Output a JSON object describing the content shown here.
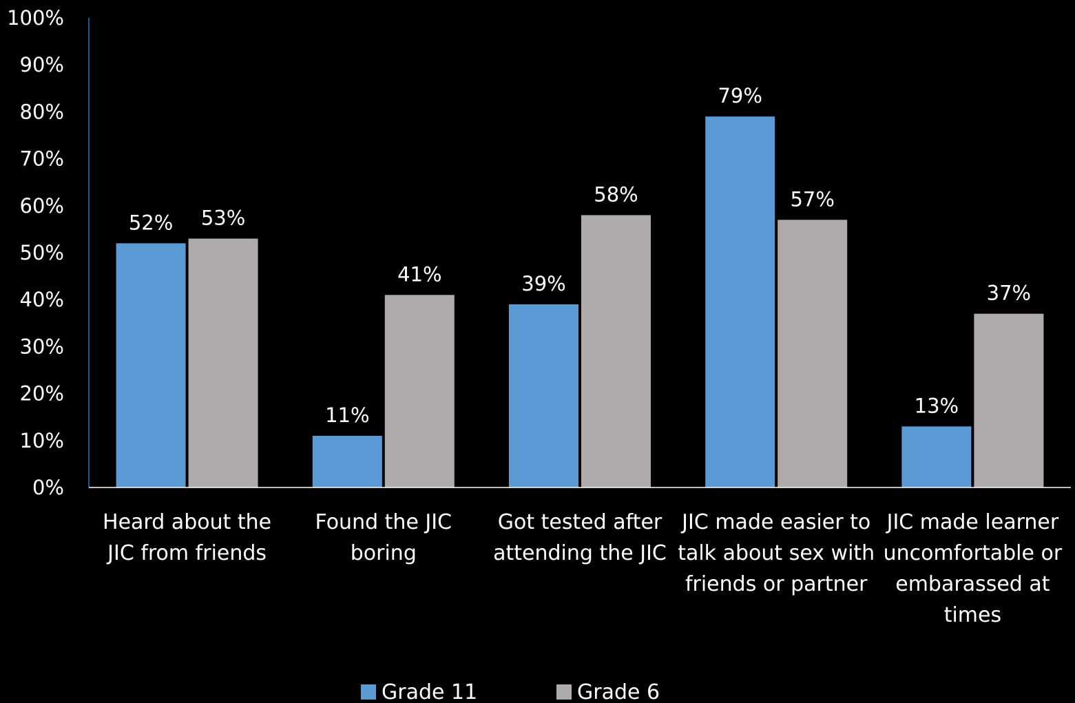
{
  "chart_data": {
    "type": "bar",
    "title": "",
    "xlabel": "",
    "ylabel": "",
    "ylim": [
      0,
      100
    ],
    "y_ticks": [
      "0%",
      "10%",
      "20%",
      "30%",
      "40%",
      "50%",
      "60%",
      "70%",
      "80%",
      "90%",
      "100%"
    ],
    "grid": false,
    "legend_position": "bottom",
    "categories": [
      [
        "Heard about the",
        "JIC from friends"
      ],
      [
        "Found the JIC",
        "boring"
      ],
      [
        "Got tested after",
        "attending the JIC"
      ],
      [
        "JIC made easier to",
        "talk about sex with",
        "friends or partner"
      ],
      [
        "JIC made learner",
        "uncomfortable or",
        "embarassed at",
        "times"
      ]
    ],
    "series": [
      {
        "name": "Grade 11",
        "color": "#5B9BD5",
        "values": [
          52,
          11,
          39,
          79,
          13
        ],
        "labels": [
          "52%",
          "11%",
          "39%",
          "79%",
          "13%"
        ]
      },
      {
        "name": "Grade 6",
        "color": "#AFABAB",
        "values": [
          53,
          41,
          58,
          57,
          37
        ],
        "labels": [
          "53%",
          "41%",
          "58%",
          "57%",
          "37%"
        ]
      }
    ]
  }
}
